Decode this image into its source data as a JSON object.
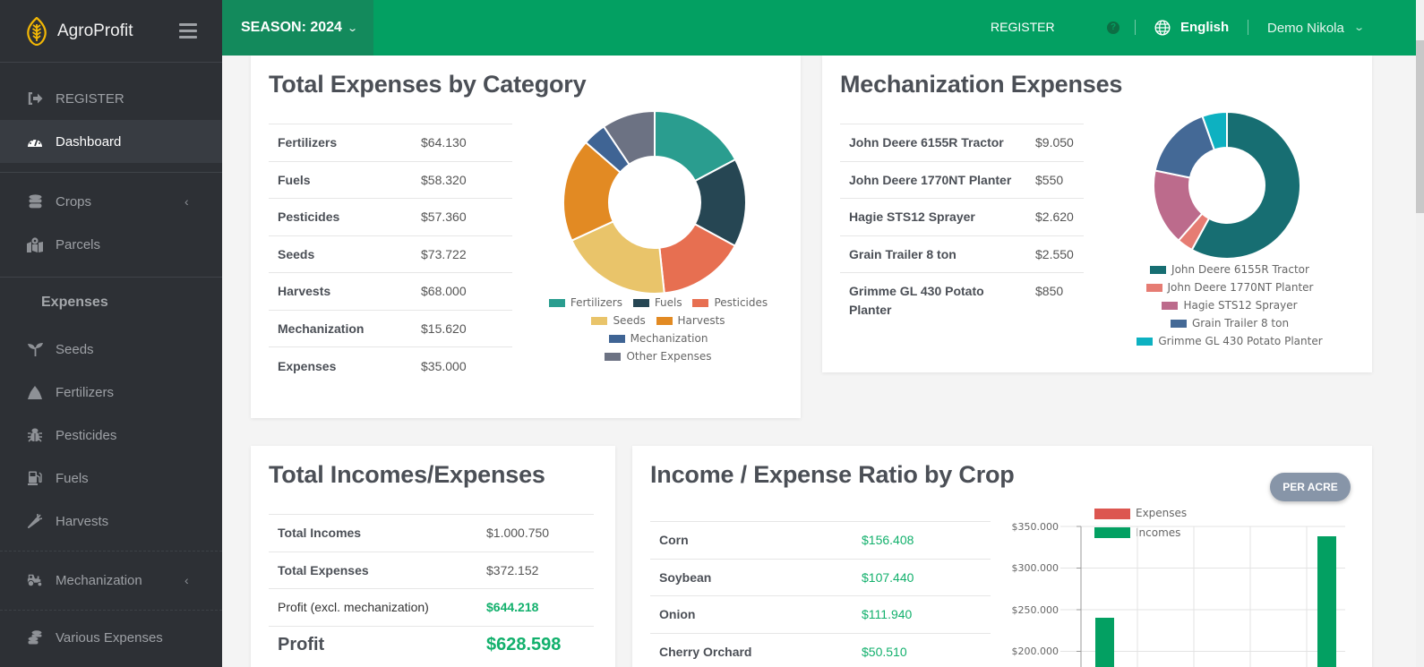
{
  "sidebar": {
    "brand": "AgroProfit",
    "items": [
      {
        "label": "REGISTER",
        "icon": "sign-in-icon"
      },
      {
        "label": "Dashboard",
        "icon": "dashboard-gauge-icon",
        "active": true
      },
      {
        "label": "Crops",
        "icon": "database-icon",
        "expandable": true
      },
      {
        "label": "Parcels",
        "icon": "map-marker-icon"
      },
      {
        "label": "Seeds",
        "icon": "seedling-icon"
      },
      {
        "label": "Fertilizers",
        "icon": "fertilizer-pile-icon"
      },
      {
        "label": "Pesticides",
        "icon": "bug-icon"
      },
      {
        "label": "Fuels",
        "icon": "gas-pump-icon"
      },
      {
        "label": "Harvests",
        "icon": "carrot-icon"
      },
      {
        "label": "Mechanization",
        "icon": "tractor-icon",
        "expandable": true
      },
      {
        "label": "Various Expenses",
        "icon": "coins-icon"
      }
    ],
    "expenses_heading": "Expenses",
    "chevron": "‹"
  },
  "header": {
    "season_label": "SEASON: 2024",
    "register": "REGISTER",
    "help": "?",
    "language": "English",
    "user": "Demo Nikola",
    "caret": "⌄",
    "colors": {
      "primary": "#03a062",
      "season_bg": "#138a5c"
    }
  },
  "expenses_by_category": {
    "title": "Total Expenses by Category",
    "rows": [
      {
        "label": "Fertilizers",
        "value": "$64.130"
      },
      {
        "label": "Fuels",
        "value": "$58.320"
      },
      {
        "label": "Pesticides",
        "value": "$57.360"
      },
      {
        "label": "Seeds",
        "value": "$73.722"
      },
      {
        "label": "Harvests",
        "value": "$68.000"
      },
      {
        "label": "Mechanization",
        "value": "$15.620"
      },
      {
        "label": "Expenses",
        "value": "$35.000"
      }
    ],
    "legend": [
      {
        "label": "Fertilizers",
        "color": "#2a9d8f"
      },
      {
        "label": "Fuels",
        "color": "#264653"
      },
      {
        "label": "Pesticides",
        "color": "#e76f51"
      },
      {
        "label": "Seeds",
        "color": "#e9c46a"
      },
      {
        "label": "Harvests",
        "color": "#e28a23"
      },
      {
        "label": "Mechanization",
        "color": "#3f6494"
      },
      {
        "label": "Other Expenses",
        "color": "#6c7283"
      }
    ]
  },
  "mechanization": {
    "title": "Mechanization Expenses",
    "rows": [
      {
        "label": "John Deere 6155R Tractor",
        "value": "$9.050"
      },
      {
        "label": "John Deere 1770NT Planter",
        "value": "$550"
      },
      {
        "label": "Hagie STS12 Sprayer",
        "value": "$2.620"
      },
      {
        "label": "Grain Trailer 8 ton",
        "value": "$2.550"
      },
      {
        "label": "Grimme GL 430 Potato Planter",
        "value": "$850"
      }
    ],
    "legend": [
      {
        "label": "John Deere 6155R Tractor",
        "color": "#176e72"
      },
      {
        "label": "John Deere 1770NT Planter",
        "color": "#e67c73"
      },
      {
        "label": "Hagie STS12 Sprayer",
        "color": "#bc6b8c"
      },
      {
        "label": "Grain Trailer 8 ton",
        "color": "#446996"
      },
      {
        "label": "Grimme GL 430 Potato Planter",
        "color": "#0db1c1"
      }
    ]
  },
  "totals": {
    "title": "Total Incomes/Expenses",
    "rows": [
      {
        "label": "Total Incomes",
        "value": "$1.000.750"
      },
      {
        "label": "Total Expenses",
        "value": "$372.152"
      },
      {
        "label": "Profit (excl. mechanization)",
        "value": "$644.218"
      }
    ],
    "profit_label": "Profit",
    "profit_value": "$628.598"
  },
  "ratio_by_crop": {
    "title": "Income / Expense Ratio by Crop",
    "per_acre_button": "PER ACRE",
    "rows": [
      {
        "label": "Corn",
        "value": "$156.408"
      },
      {
        "label": "Soybean",
        "value": "$107.440"
      },
      {
        "label": "Onion",
        "value": "$111.940"
      },
      {
        "label": "Cherry Orchard",
        "value": "$50.510"
      }
    ],
    "legend": [
      {
        "label": "Expenses",
        "color": "#dc5650"
      },
      {
        "label": "Incomes",
        "color": "#03a062"
      }
    ],
    "yticks": [
      "$350.000",
      "$300.000",
      "$250.000",
      "$200.000"
    ]
  },
  "chart_data": [
    {
      "type": "pie",
      "title": "Total Expenses by Category",
      "categories": [
        "Fertilizers",
        "Fuels",
        "Pesticides",
        "Seeds",
        "Harvests",
        "Mechanization",
        "Other Expenses"
      ],
      "values": [
        64130,
        58320,
        57360,
        73722,
        68000,
        15620,
        35000
      ],
      "colors": [
        "#2a9d8f",
        "#264653",
        "#e76f51",
        "#e9c46a",
        "#e28a23",
        "#3f6494",
        "#6c7283"
      ],
      "legend_position": "bottom"
    },
    {
      "type": "pie",
      "title": "Mechanization Expenses",
      "categories": [
        "John Deere 6155R Tractor",
        "John Deere 1770NT Planter",
        "Hagie STS12 Sprayer",
        "Grain Trailer 8 ton",
        "Grimme GL 430 Potato Planter"
      ],
      "values": [
        9050,
        550,
        2620,
        2550,
        850
      ],
      "colors": [
        "#176e72",
        "#e67c73",
        "#bc6b8c",
        "#446996",
        "#0db1c1"
      ],
      "legend_position": "bottom"
    },
    {
      "type": "bar",
      "title": "Income / Expense Ratio by Crop",
      "series": [
        {
          "name": "Expenses",
          "values": []
        },
        {
          "name": "Incomes",
          "values": [
            240000,
            null,
            null,
            null,
            338000
          ]
        }
      ],
      "ylabel": "",
      "xlabel": "",
      "ylim_visible": [
        200000,
        350000
      ],
      "yticks": [
        "$200.000",
        "$250.000",
        "$300.000",
        "$350.000"
      ],
      "grid": true,
      "legend_position": "top",
      "note": "chart partially cut off at bottom; only visible portion shown"
    }
  ]
}
